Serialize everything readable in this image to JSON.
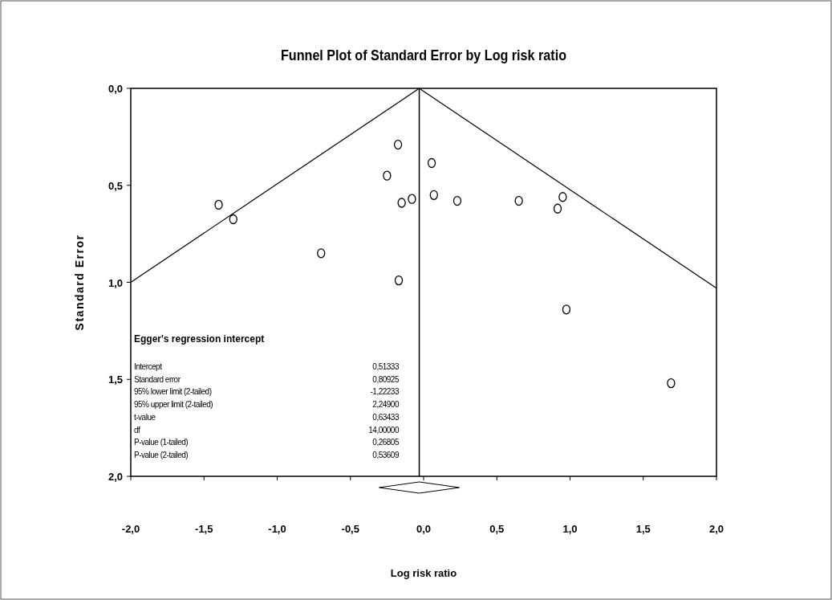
{
  "chart_data": {
    "type": "scatter",
    "title": "Funnel Plot of Standard Error by Log risk ratio",
    "xlabel": "Log risk ratio",
    "ylabel": "Standard Error",
    "marker": "circle",
    "xlim": [
      -2,
      2
    ],
    "ylim": [
      2,
      0
    ],
    "xticks": [
      {
        "value": -2,
        "label": "-2,0"
      },
      {
        "value": -1.5,
        "label": "-1,5"
      },
      {
        "value": -1,
        "label": "-1,0"
      },
      {
        "value": -0.5,
        "label": "-0,5"
      },
      {
        "value": 0,
        "label": "0,0"
      },
      {
        "value": 0.5,
        "label": "0,5"
      },
      {
        "value": 1,
        "label": "1,0"
      },
      {
        "value": 1.5,
        "label": "1,5"
      },
      {
        "value": 2,
        "label": "2,0"
      }
    ],
    "yticks": [
      {
        "value": 0,
        "label": "0,0"
      },
      {
        "value": 0.5,
        "label": "0,5"
      },
      {
        "value": 1,
        "label": "1,0"
      },
      {
        "value": 1.5,
        "label": "1,5"
      },
      {
        "value": 2,
        "label": "2,0"
      }
    ],
    "series": [
      {
        "color": "#000000",
        "x": [
          -1.4,
          -1.3,
          -0.7,
          -0.175,
          -0.25,
          -0.15,
          -0.08,
          -0.17,
          0.055,
          0.07,
          0.23,
          0.65,
          0.915,
          0.95,
          0.975,
          1.69
        ],
        "values": [
          0.6,
          0.675,
          0.85,
          0.29,
          0.45,
          0.59,
          0.57,
          0.99,
          0.385,
          0.55,
          0.58,
          0.58,
          0.62,
          0.56,
          1.14,
          1.52
        ]
      },
      {
        "type": "line",
        "marker": "none",
        "color": "#000000",
        "x": [
          -2,
          -0.03,
          2
        ],
        "values": [
          1.0,
          0,
          1.03
        ]
      }
    ],
    "ref_lines": [
      {
        "axis": "x",
        "value": -0.03,
        "color": "#000000"
      }
    ],
    "annotations": [
      "Egger's regression intercept",
      "Intercept",
      "0,51333",
      "Standard error",
      "0,80925",
      "95% lower limit (2-tailed)",
      "-1,22233",
      "95% upper limit (2-tailed)",
      "2,24900",
      "t-value",
      "0,63433",
      "df",
      "14,00000",
      "P-value (1-tailed)",
      "0,26805",
      "P-value (2-tailed)",
      "0,53609"
    ]
  }
}
